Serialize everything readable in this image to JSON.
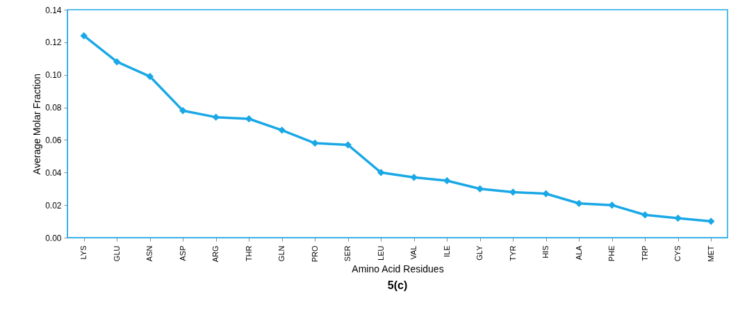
{
  "chart_data": {
    "type": "line",
    "title": "5(c)",
    "xlabel": "Amino Acid Residues",
    "ylabel": "Average Molar Fraction",
    "categories": [
      "LYS",
      "GLU",
      "ASN",
      "ASP",
      "ARG",
      "THR",
      "GLN",
      "PRO",
      "SER",
      "LEU",
      "VAL",
      "ILE",
      "GLY",
      "TYR",
      "HIS",
      "ALA",
      "PHE",
      "TRP",
      "CYS",
      "MET"
    ],
    "series": [
      {
        "color": "#1aa8e6",
        "values": [
          0.124,
          0.108,
          0.099,
          0.078,
          0.074,
          0.073,
          0.066,
          0.058,
          0.057,
          0.04,
          0.037,
          0.035,
          0.03,
          0.028,
          0.027,
          0.021,
          0.02,
          0.014,
          0.012,
          0.01
        ]
      }
    ],
    "ylim": [
      0,
      0.14
    ],
    "yticks": [
      {
        "value": 0,
        "label": "0.00"
      },
      {
        "value": 0.02,
        "label": "0.02"
      },
      {
        "value": 0.04,
        "label": "0.04"
      },
      {
        "value": 0.06,
        "label": "0.06"
      },
      {
        "value": 0.08,
        "label": "0.08"
      },
      {
        "value": 0.1,
        "label": "0.10"
      },
      {
        "value": 0.12,
        "label": "0.12"
      },
      {
        "value": 0.14,
        "label": "0.14"
      }
    ],
    "grid": false,
    "marker": "diamond",
    "line_style": "solid"
  }
}
